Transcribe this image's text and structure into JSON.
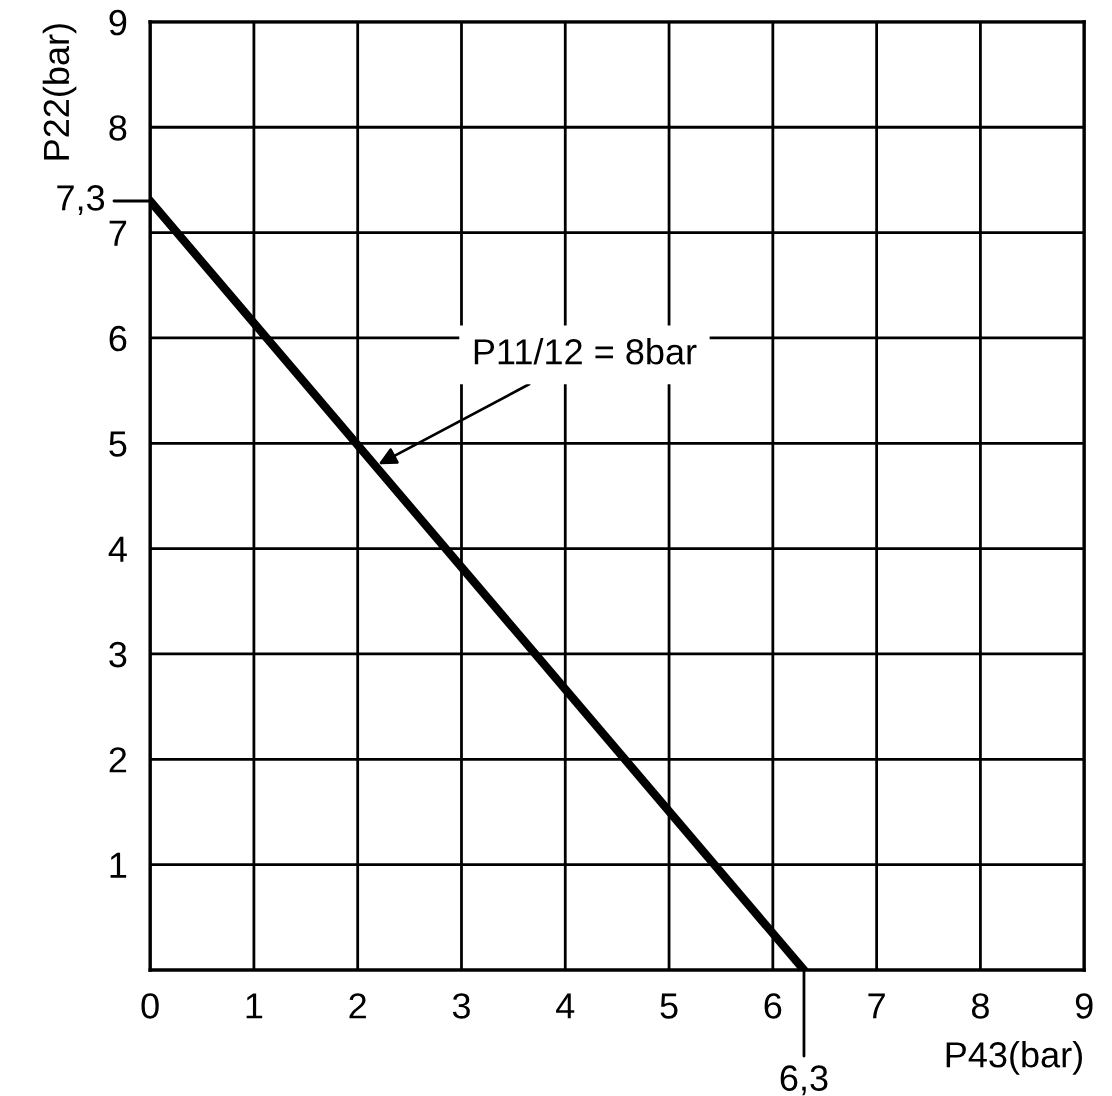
{
  "chart_data": {
    "type": "line",
    "xlabel": "P43(bar)",
    "ylabel": "P22(bar)",
    "x": [
      0,
      6.3
    ],
    "series": [
      {
        "color": "#000000",
        "values": [
          7.3,
          0
        ]
      }
    ],
    "xlim": [
      0,
      9
    ],
    "ylim": [
      0,
      9
    ],
    "xticks": [
      0,
      1,
      2,
      3,
      4,
      5,
      6,
      7,
      8,
      9
    ],
    "yticks": [
      1,
      2,
      3,
      4,
      5,
      6,
      7,
      8,
      9
    ],
    "grid": true,
    "marker": "none",
    "line_style": "solid",
    "legend": false,
    "annotations": [
      {
        "text": "P11/12 = 8bar",
        "x": 2.2,
        "y": 4.8
      },
      {
        "text": "6,3",
        "x": 6.3,
        "y": 0
      },
      {
        "text": "7,3",
        "x": 0,
        "y": 7.3
      }
    ]
  }
}
